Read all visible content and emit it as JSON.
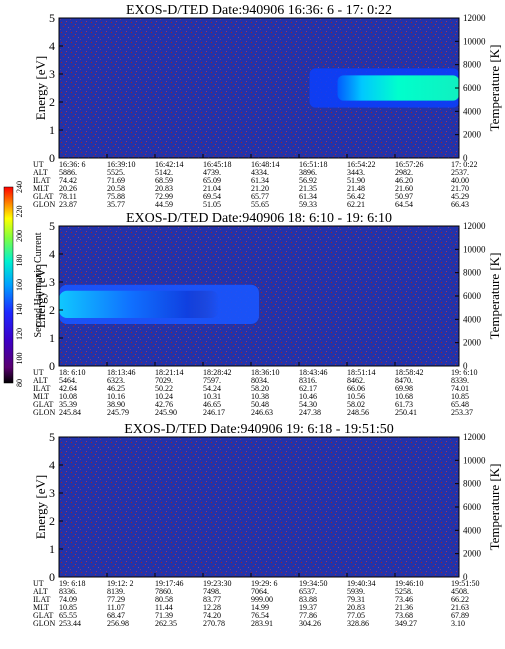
{
  "chart_data": [
    {
      "type": "heatmap",
      "title": "EXOS-D/TED   Date:940906  16:36: 6 - 17: 0:22",
      "ylabel": "Energy [eV]",
      "y2label": "Temperature [K]",
      "ylim": [
        0,
        5
      ],
      "y2lim": [
        0,
        12000
      ],
      "yticks": [
        "0",
        "1",
        "2",
        "3",
        "4",
        "5"
      ],
      "y2ticks": [
        "0",
        "2000",
        "4000",
        "6000",
        "8000",
        "10000",
        "12000"
      ],
      "xticks": [
        "16:36: 6",
        "16:39:10",
        "16:42:14",
        "16:45:18",
        "16:48:14",
        "16:51:18",
        "16:54:22",
        "16:57:26",
        "17: 0:22"
      ],
      "table": [
        {
          "label": "UT",
          "values": [
            "16:36: 6",
            "16:39:10",
            "16:42:14",
            "16:45:18",
            "16:48:14",
            "16:51:18",
            "16:54:22",
            "16:57:26",
            "17: 0:22"
          ]
        },
        {
          "label": "ALT",
          "values": [
            "5886.",
            "5525.",
            "5142.",
            "4739.",
            "4334.",
            "3896.",
            "3443.",
            "2982.",
            "2537."
          ]
        },
        {
          "label": "ILAT",
          "values": [
            "74.42",
            "71.69",
            "68.59",
            "65.09",
            "61.34",
            "56.92",
            "51.90",
            "46.20",
            "40.00"
          ]
        },
        {
          "label": "MLT",
          "values": [
            "20.26",
            "20.58",
            "20.83",
            "21.04",
            "21.20",
            "21.35",
            "21.48",
            "21.60",
            "21.70"
          ]
        },
        {
          "label": "GLAT",
          "values": [
            "78.11",
            "75.88",
            "72.99",
            "69.54",
            "65.77",
            "61.34",
            "56.42",
            "50.97",
            "45.29"
          ]
        },
        {
          "label": "GLON",
          "values": [
            "23.87",
            "35.77",
            "44.59",
            "51.05",
            "55.65",
            "59.33",
            "62.21",
            "64.54",
            "66.43"
          ]
        }
      ],
      "features": [
        {
          "kind": "enhancement",
          "x_start": "16:51:18",
          "x_end": "17: 0:22",
          "energy_range_eV": [
            1.8,
            3.2
          ]
        }
      ]
    },
    {
      "type": "heatmap",
      "title": "EXOS-D/TED   Date:940906  18: 6:10 - 19: 6:10",
      "ylabel": "Energy [eV]",
      "y2label": "Temperature [K]",
      "ylim": [
        0,
        5
      ],
      "y2lim": [
        0,
        12000
      ],
      "yticks": [
        "0",
        "1",
        "2",
        "3",
        "4",
        "5"
      ],
      "y2ticks": [
        "0",
        "2000",
        "4000",
        "6000",
        "8000",
        "10000",
        "12000"
      ],
      "xticks": [
        "18: 6:10",
        "18:13:46",
        "18:21:14",
        "18:28:42",
        "18:36:10",
        "18:43:46",
        "18:51:14",
        "18:58:42",
        "19: 6:10"
      ],
      "table": [
        {
          "label": "UT",
          "values": [
            "18: 6:10",
            "18:13:46",
            "18:21:14",
            "18:28:42",
            "18:36:10",
            "18:43:46",
            "18:51:14",
            "18:58:42",
            "19: 6:10"
          ]
        },
        {
          "label": "ALT",
          "values": [
            "5464.",
            "6323.",
            "7029.",
            "7597.",
            "8034.",
            "8316.",
            "8462.",
            "8470.",
            "8339."
          ]
        },
        {
          "label": "ILAT",
          "values": [
            "42.64",
            "46.25",
            "50.22",
            "54.24",
            "58.20",
            "62.17",
            "66.06",
            "69.98",
            "74.01"
          ]
        },
        {
          "label": "MLT",
          "values": [
            "10.08",
            "10.16",
            "10.24",
            "10.31",
            "10.38",
            "10.46",
            "10.56",
            "10.68",
            "10.85"
          ]
        },
        {
          "label": "GLAT",
          "values": [
            "35.39",
            "38.90",
            "42.76",
            "46.65",
            "50.48",
            "54.30",
            "58.02",
            "61.73",
            "65.48"
          ]
        },
        {
          "label": "GLON",
          "values": [
            "245.84",
            "245.79",
            "245.90",
            "246.17",
            "246.63",
            "247.38",
            "248.56",
            "250.41",
            "253.37"
          ]
        }
      ],
      "features": [
        {
          "kind": "enhancement",
          "x_start": "18: 6:10",
          "x_end": "18:36:10",
          "energy_range_eV": [
            1.5,
            2.9
          ]
        }
      ]
    },
    {
      "type": "heatmap",
      "title": "EXOS-D/TED   Date:940906  19: 6:18 - 19:51:50",
      "ylabel": "Energy [eV]",
      "y2label": "Temperature [K]",
      "ylim": [
        0,
        5
      ],
      "y2lim": [
        0,
        12000
      ],
      "yticks": [
        "0",
        "1",
        "2",
        "3",
        "4",
        "5"
      ],
      "y2ticks": [
        "0",
        "2000",
        "4000",
        "6000",
        "8000",
        "10000",
        "12000"
      ],
      "xticks": [
        "19: 6:18",
        "19:12: 2",
        "19:17:46",
        "19:23:30",
        "19:29: 6",
        "19:34:50",
        "19:40:34",
        "19:46:10",
        "19:51:50"
      ],
      "table": [
        {
          "label": "UT",
          "values": [
            "19: 6:18",
            "19:12: 2",
            "19:17:46",
            "19:23:30",
            "19:29: 6",
            "19:34:50",
            "19:40:34",
            "19:46:10",
            "19:51:50"
          ]
        },
        {
          "label": "ALT",
          "values": [
            "8336.",
            "8139.",
            "7860.",
            "7498.",
            "7064.",
            "6537.",
            "5939.",
            "5258.",
            "4508."
          ]
        },
        {
          "label": "ILAT",
          "values": [
            "74.09",
            "77.29",
            "80.58",
            "83.77",
            "999.00",
            "83.88",
            "79.31",
            "73.46",
            "66.22"
          ]
        },
        {
          "label": "MLT",
          "values": [
            "10.85",
            "11.07",
            "11.44",
            "12.28",
            "14.99",
            "19.37",
            "20.83",
            "21.36",
            "21.63"
          ]
        },
        {
          "label": "GLAT",
          "values": [
            "65.55",
            "68.47",
            "71.39",
            "74.20",
            "76.54",
            "77.86",
            "77.05",
            "73.68",
            "67.89"
          ]
        },
        {
          "label": "GLON",
          "values": [
            "253.44",
            "256.98",
            "262.35",
            "270.78",
            "283.91",
            "304.26",
            "328.86",
            "349.27",
            "3.10"
          ]
        }
      ],
      "features": []
    }
  ],
  "colorbar": {
    "label": "Second Harmonic Current",
    "ticks": [
      "80",
      "100",
      "120",
      "140",
      "160",
      "180",
      "200",
      "220",
      "240"
    ],
    "range": [
      80,
      240
    ],
    "colors": [
      "#000000",
      "#5a0070",
      "#3c00c8",
      "#1e28ff",
      "#00a0ff",
      "#00f0d0",
      "#80ff40",
      "#ffff00",
      "#ff8000",
      "#ff0000"
    ]
  },
  "background_color": "#2233aa",
  "speckle_color": "#aa2222"
}
